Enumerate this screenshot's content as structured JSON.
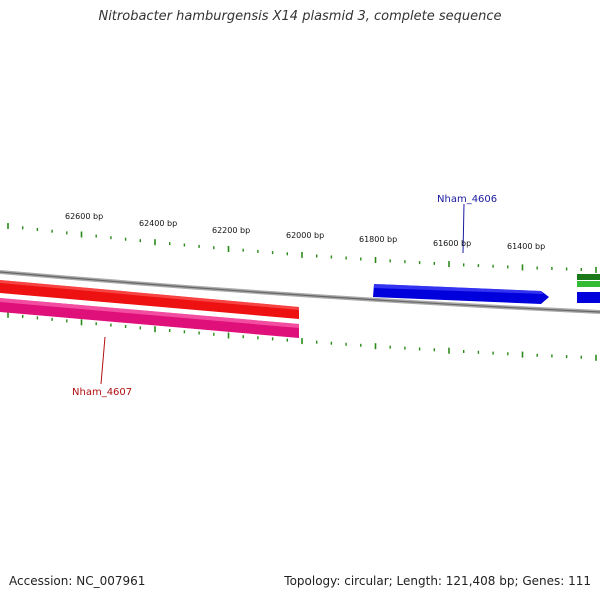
{
  "title": "Nitrobacter hamburgensis X14 plasmid 3, complete sequence",
  "footer": {
    "accession": "Accession: NC_007961",
    "summary": "Topology: circular; Length: 121,408 bp; Genes: 111"
  },
  "ruler": {
    "labels": [
      "62600 bp",
      "62400 bp",
      "62200 bp",
      "62000 bp",
      "61800 bp",
      "61600 bp",
      "61400 bp"
    ],
    "tick_color": "#2a8a1a"
  },
  "backbone": {
    "color": "#888888"
  },
  "genes": [
    {
      "name": "Nham_4606",
      "strand": "forward",
      "color": "#0000dd",
      "label_color": "#1a1aa0"
    },
    {
      "name": "Nham_4607",
      "strand": "reverse",
      "color": "#e0107a",
      "label_color": "#b01010"
    }
  ],
  "colors": {
    "forward_red": "#ee1111",
    "reverse_pink": "#e0107a",
    "blue": "#0000dd",
    "green": "#2aa02a"
  }
}
